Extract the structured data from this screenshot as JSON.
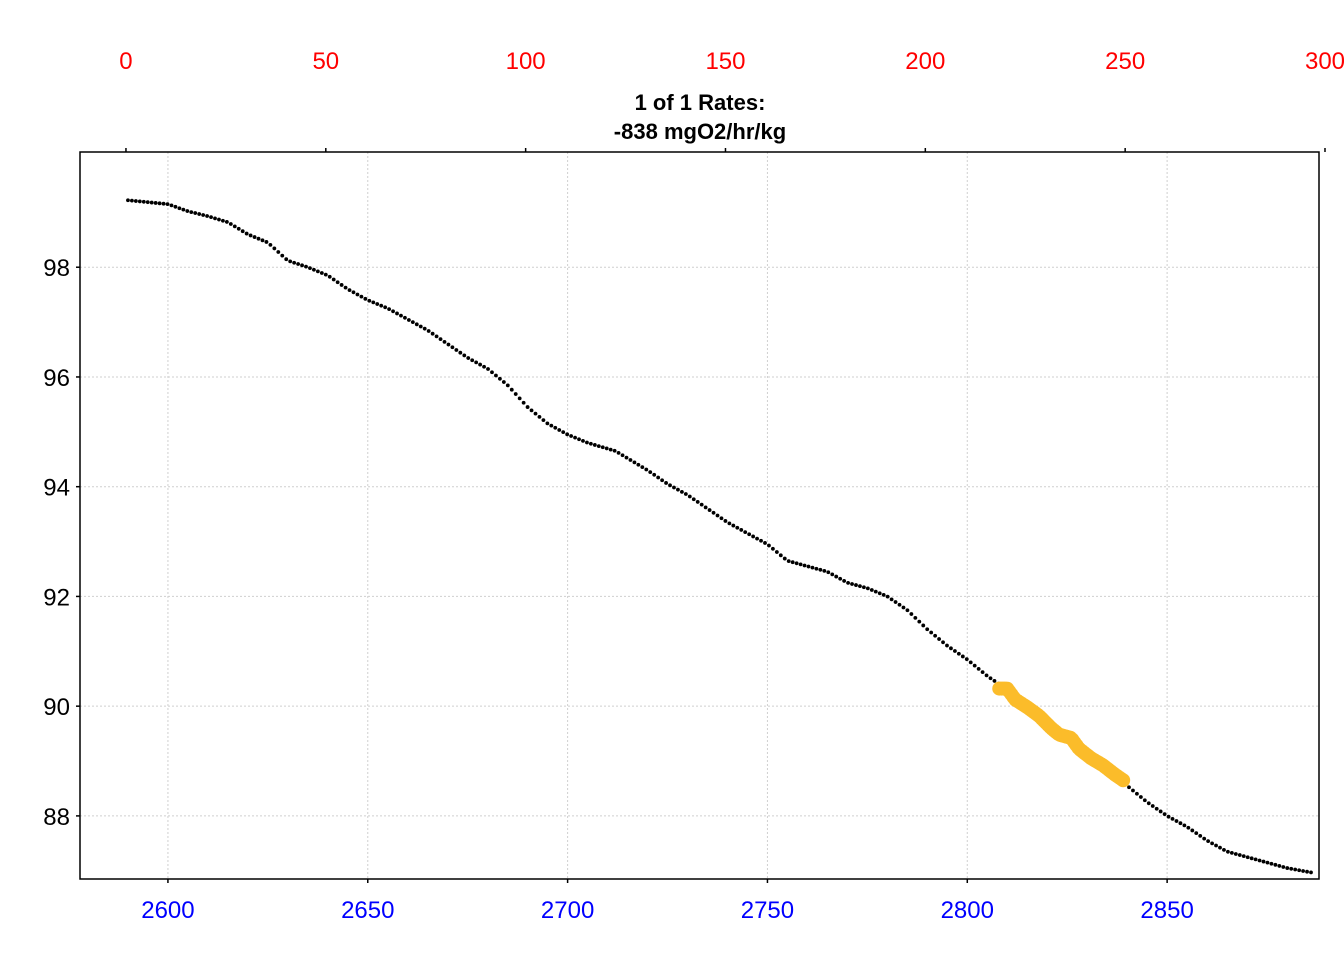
{
  "chart_data": {
    "type": "scatter",
    "title_lines": [
      "1 of 1 Rates:",
      "-838 mgO2/hr/kg"
    ],
    "xlabel": "",
    "ylabel": "",
    "x_bottom": {
      "ticks": [
        2600,
        2650,
        2700,
        2750,
        2800,
        2850
      ],
      "range": [
        2578,
        2888
      ],
      "label_color": "#0000FF"
    },
    "x_top": {
      "ticks": [
        0,
        50,
        100,
        150,
        200,
        250,
        300
      ],
      "range": [
        -11.5,
        298.5
      ],
      "label_color": "#FF0000"
    },
    "y": {
      "ticks": [
        88,
        90,
        92,
        94,
        96,
        98
      ],
      "range": [
        86.85,
        100.1
      ]
    },
    "grid": true,
    "colors": {
      "points": "#000000",
      "highlight": "#FBBC2A",
      "grid": "#cfcfcf"
    },
    "series": [
      {
        "role": "data",
        "x_range": [
          2590,
          2886
        ],
        "anchors": [
          [
            2590,
            99.22
          ],
          [
            2600,
            99.15
          ],
          [
            2605,
            99.02
          ],
          [
            2610,
            98.93
          ],
          [
            2615,
            98.82
          ],
          [
            2620,
            98.6
          ],
          [
            2625,
            98.45
          ],
          [
            2630,
            98.12
          ],
          [
            2635,
            98.0
          ],
          [
            2640,
            97.85
          ],
          [
            2645,
            97.6
          ],
          [
            2650,
            97.4
          ],
          [
            2655,
            97.25
          ],
          [
            2660,
            97.05
          ],
          [
            2665,
            96.85
          ],
          [
            2670,
            96.6
          ],
          [
            2675,
            96.35
          ],
          [
            2680,
            96.15
          ],
          [
            2685,
            95.85
          ],
          [
            2690,
            95.45
          ],
          [
            2695,
            95.15
          ],
          [
            2700,
            94.95
          ],
          [
            2705,
            94.8
          ],
          [
            2712,
            94.65
          ],
          [
            2720,
            94.3
          ],
          [
            2725,
            94.05
          ],
          [
            2730,
            93.85
          ],
          [
            2735,
            93.6
          ],
          [
            2740,
            93.35
          ],
          [
            2745,
            93.15
          ],
          [
            2750,
            92.95
          ],
          [
            2755,
            92.65
          ],
          [
            2760,
            92.55
          ],
          [
            2765,
            92.45
          ],
          [
            2770,
            92.25
          ],
          [
            2775,
            92.15
          ],
          [
            2780,
            92.0
          ],
          [
            2785,
            91.75
          ],
          [
            2790,
            91.4
          ],
          [
            2795,
            91.1
          ],
          [
            2800,
            90.85
          ],
          [
            2805,
            90.55
          ],
          [
            2810,
            90.3
          ],
          [
            2815,
            90.0
          ],
          [
            2820,
            89.7
          ],
          [
            2825,
            89.45
          ],
          [
            2830,
            89.2
          ],
          [
            2835,
            88.9
          ],
          [
            2840,
            88.55
          ],
          [
            2845,
            88.25
          ],
          [
            2850,
            88.0
          ],
          [
            2855,
            87.8
          ],
          [
            2860,
            87.55
          ],
          [
            2865,
            87.35
          ],
          [
            2870,
            87.25
          ],
          [
            2875,
            87.15
          ],
          [
            2880,
            87.05
          ],
          [
            2886,
            86.97
          ]
        ]
      },
      {
        "role": "highlight",
        "x_range": [
          2808,
          2839
        ],
        "anchors": [
          [
            2808,
            90.32
          ],
          [
            2810,
            90.32
          ],
          [
            2812,
            90.12
          ],
          [
            2815,
            89.98
          ],
          [
            2818,
            89.82
          ],
          [
            2821,
            89.6
          ],
          [
            2823,
            89.48
          ],
          [
            2826,
            89.42
          ],
          [
            2828,
            89.22
          ],
          [
            2831,
            89.05
          ],
          [
            2834,
            88.92
          ],
          [
            2837,
            88.75
          ],
          [
            2839,
            88.65
          ]
        ]
      }
    ]
  }
}
